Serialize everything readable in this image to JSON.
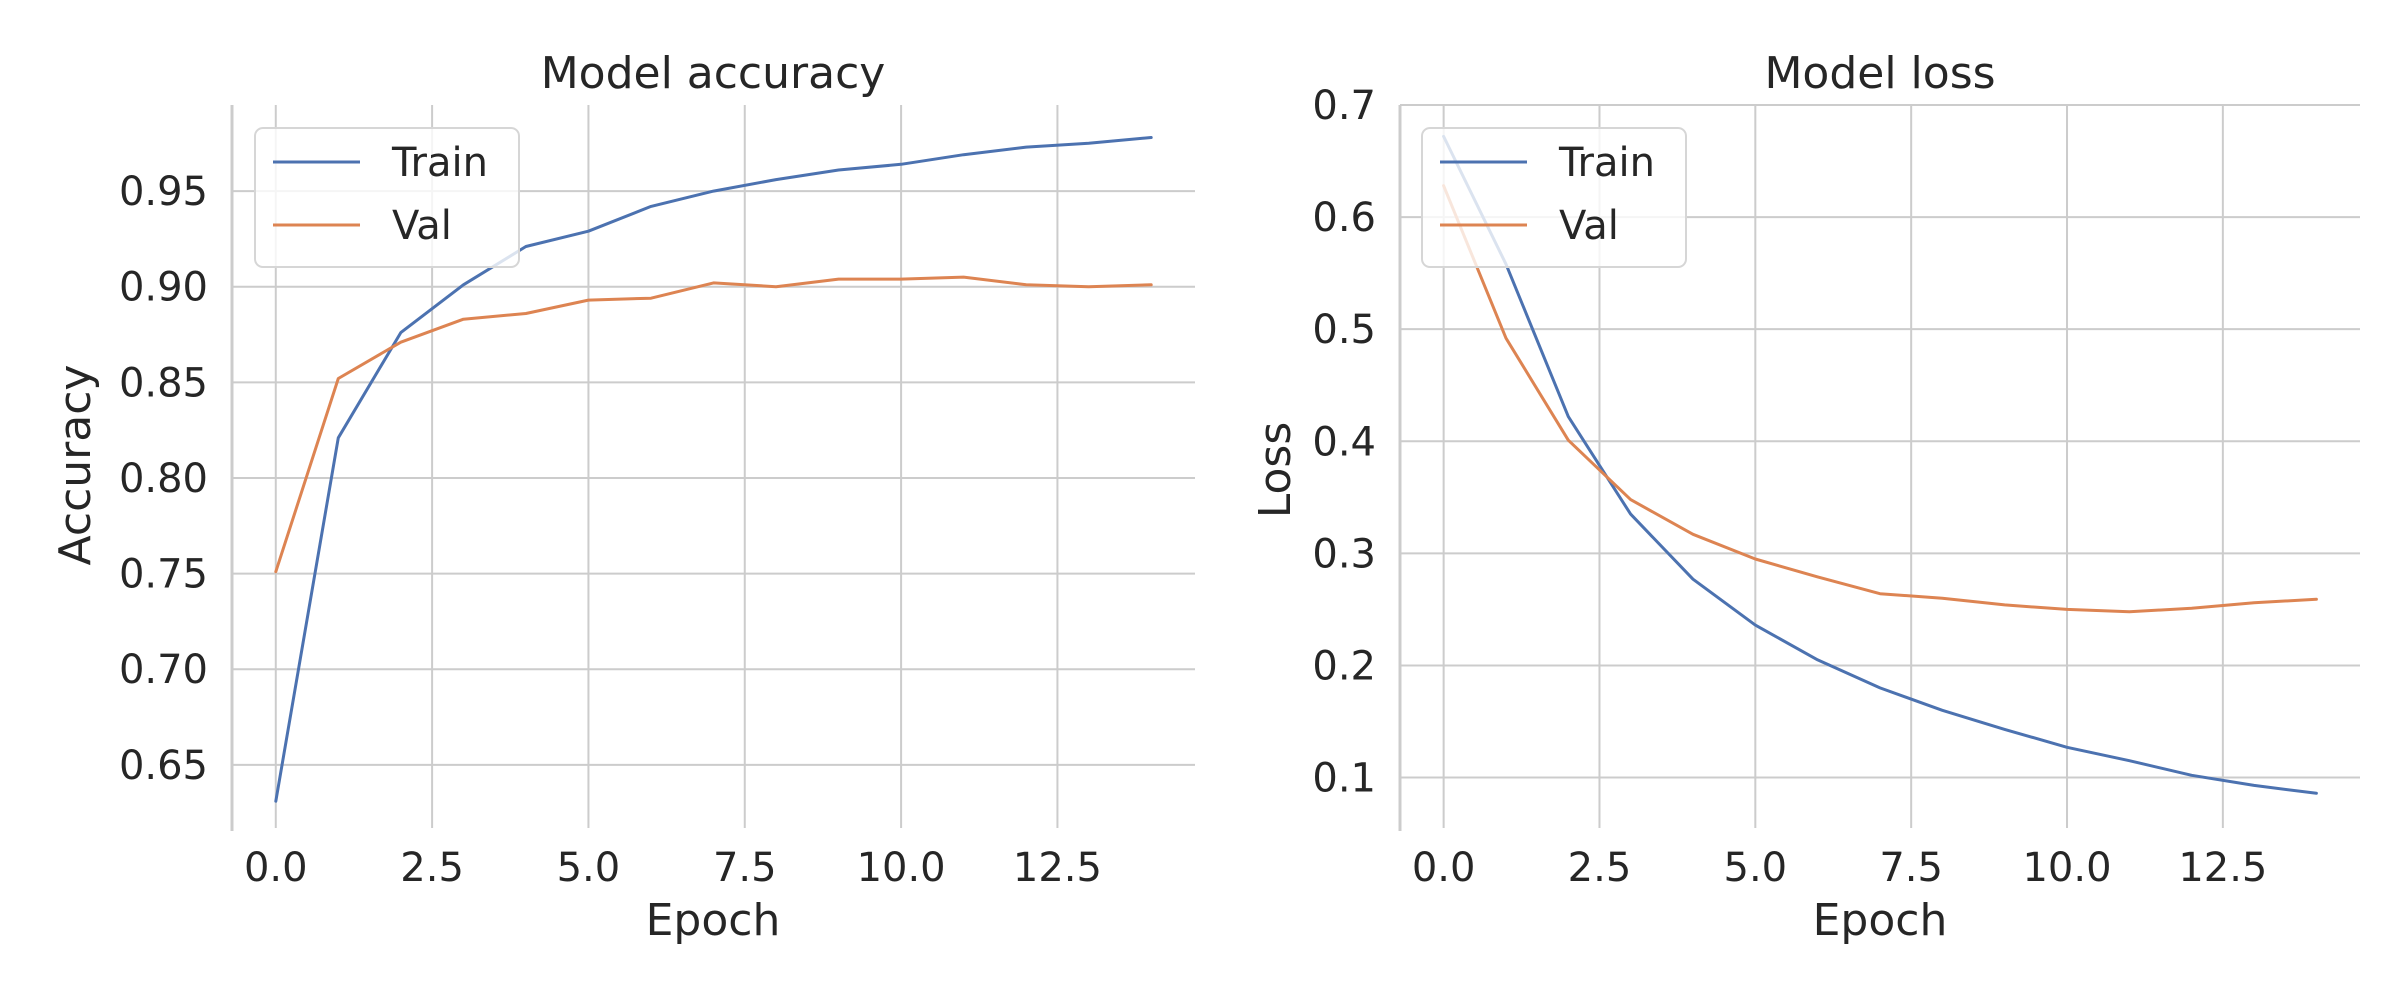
{
  "chart_data": [
    {
      "type": "line",
      "title": "Model accuracy",
      "xlabel": "Epoch",
      "ylabel": "Accuracy",
      "xlim": [
        -0.7,
        14.7
      ],
      "ylim": [
        0.617,
        0.995
      ],
      "xticks": [
        0,
        2.5,
        5,
        7.5,
        10,
        12.5
      ],
      "xtick_labels": [
        "0.0",
        "2.5",
        "5.0",
        "7.5",
        "10.0",
        "12.5"
      ],
      "yticks": [
        0.65,
        0.7,
        0.75,
        0.8,
        0.85,
        0.9,
        0.95
      ],
      "ytick_labels": [
        "0.65",
        "0.70",
        "0.75",
        "0.80",
        "0.85",
        "0.90",
        "0.95"
      ],
      "grid": true,
      "legend_position": "upper-left",
      "x": [
        0,
        1,
        2,
        3,
        4,
        5,
        6,
        7,
        8,
        9,
        10,
        11,
        12,
        13,
        14
      ],
      "series": [
        {
          "name": "Train",
          "color": "#4c72b0",
          "values": [
            0.631,
            0.821,
            0.876,
            0.901,
            0.921,
            0.929,
            0.942,
            0.95,
            0.956,
            0.961,
            0.964,
            0.969,
            0.973,
            0.975,
            0.978
          ]
        },
        {
          "name": "Val",
          "color": "#dd8452",
          "values": [
            0.751,
            0.852,
            0.871,
            0.883,
            0.886,
            0.893,
            0.894,
            0.902,
            0.9,
            0.904,
            0.904,
            0.905,
            0.901,
            0.9,
            0.901
          ]
        }
      ]
    },
    {
      "type": "line",
      "title": "Model loss",
      "xlabel": "Epoch",
      "ylabel": "Loss",
      "xlim": [
        -0.7,
        14.7
      ],
      "ylim": [
        0.055,
        0.7
      ],
      "xticks": [
        0,
        2.5,
        5,
        7.5,
        10,
        12.5
      ],
      "xtick_labels": [
        "0.0",
        "2.5",
        "5.0",
        "7.5",
        "10.0",
        "12.5"
      ],
      "yticks": [
        0.1,
        0.2,
        0.3,
        0.4,
        0.5,
        0.6,
        0.7
      ],
      "ytick_labels": [
        "0.1",
        "0.2",
        "0.3",
        "0.4",
        "0.5",
        "0.6",
        "0.7"
      ],
      "grid": true,
      "legend_position": "upper-left",
      "x": [
        0,
        1,
        2,
        3,
        4,
        5,
        6,
        7,
        8,
        9,
        10,
        11,
        12,
        13,
        14
      ],
      "series": [
        {
          "name": "Train",
          "color": "#4c72b0",
          "values": [
            0.672,
            0.558,
            0.422,
            0.335,
            0.277,
            0.236,
            0.205,
            0.18,
            0.16,
            0.143,
            0.127,
            0.115,
            0.102,
            0.093,
            0.086
          ]
        },
        {
          "name": "Val",
          "color": "#dd8452",
          "values": [
            0.628,
            0.492,
            0.401,
            0.348,
            0.317,
            0.295,
            0.279,
            0.264,
            0.26,
            0.254,
            0.25,
            0.248,
            0.251,
            0.256,
            0.259
          ]
        }
      ]
    }
  ]
}
